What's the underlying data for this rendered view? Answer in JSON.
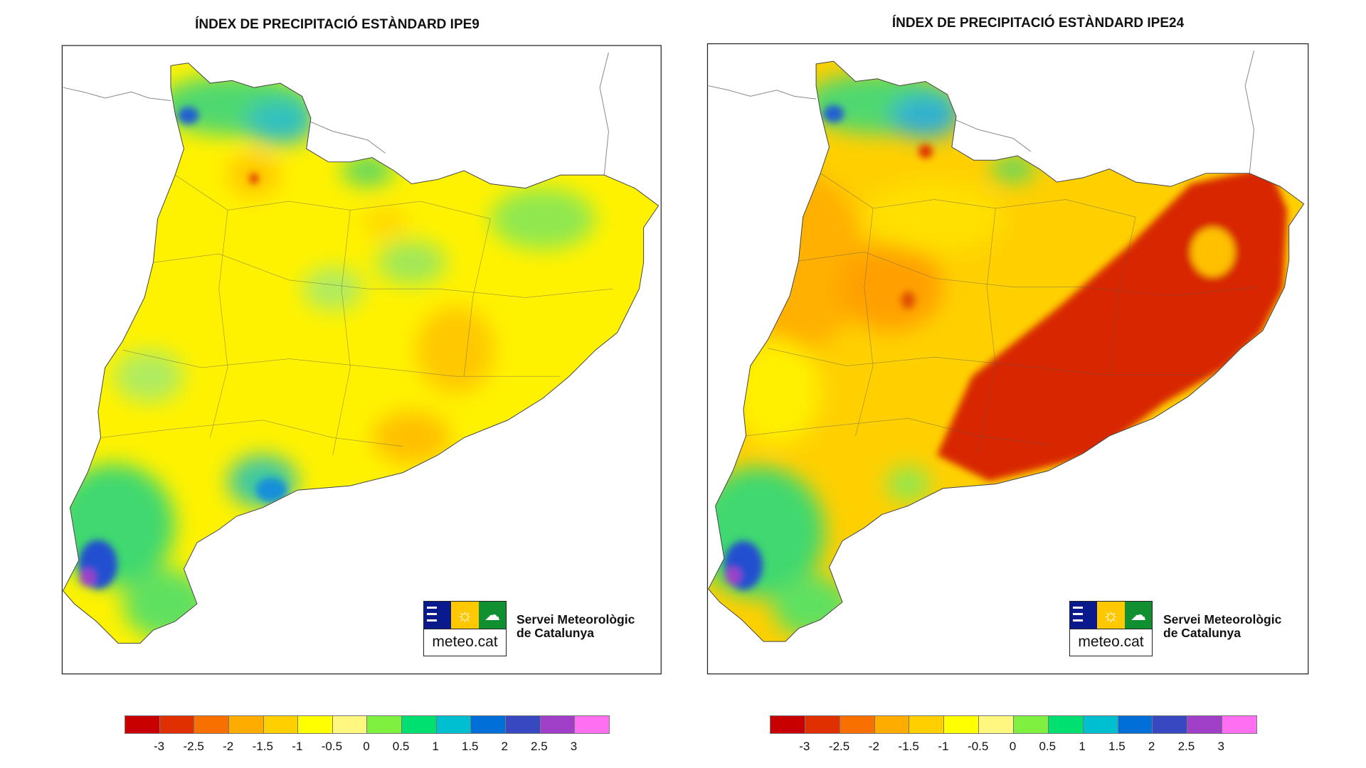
{
  "maps": [
    {
      "title": "ÍNDEX DE PRECIPITACIÓ ESTÀNDARD IPE9"
    },
    {
      "title": "ÍNDEX DE PRECIPITACIÓ ESTÀNDARD IPE24"
    }
  ],
  "legend": {
    "colors": [
      "#c80000",
      "#e03000",
      "#f87000",
      "#ffac00",
      "#ffd000",
      "#ffff00",
      "#fff880",
      "#80f040",
      "#00e070",
      "#00c0d0",
      "#0070d8",
      "#3848c0",
      "#a040c8",
      "#ff70f0"
    ],
    "labels": [
      "-3",
      "-2.5",
      "-2",
      "-1.5",
      "-1",
      "-0.5",
      "0",
      "0.5",
      "1",
      "1.5",
      "2",
      "2.5",
      "3"
    ]
  },
  "logo": {
    "word": "meteo.cat",
    "org_line1": "Servei Meteorològic",
    "org_line2": "de Catalunya",
    "colors": {
      "navy": "#0a1a8c",
      "sun": "#ffc800",
      "green": "#109030"
    }
  }
}
